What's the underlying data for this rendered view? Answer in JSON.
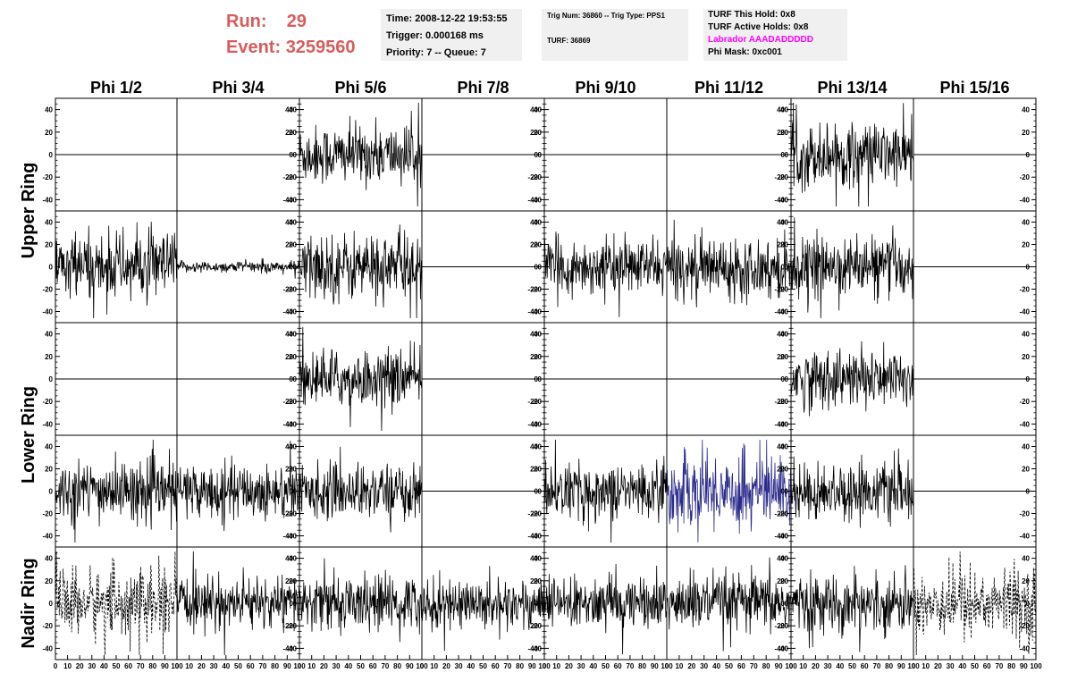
{
  "header": {
    "run_label": "Run:",
    "run_value": "29",
    "event_label": "Event:",
    "event_value": "3259560",
    "time_line": "Time: 2008-12-22 19:53:55",
    "trigger_line": "Trigger: 0.000168 ms",
    "priority_line": "Priority: 7 -- Queue: 7",
    "trig_num_line": "Trig Num: 36860 -- Trig Type: PPS1",
    "turf_line": "TURF: 36869",
    "turf_hold_line": "TURF This Hold: 0x8",
    "turf_active_line": "TURF Active Holds: 0x8",
    "labrador_line": "Labrador AAADADDDDD",
    "phi_mask_line": "Phi Mask: 0xc001",
    "labrador_color": "#ff00ff",
    "run_color": "#d95c5c"
  },
  "chart_data": {
    "type": "line",
    "columns": [
      "Phi 1/2",
      "Phi 3/4",
      "Phi 5/6",
      "Phi 7/8",
      "Phi 9/10",
      "Phi 11/12",
      "Phi 13/14",
      "Phi 15/16"
    ],
    "rows": [
      "Upper Ring",
      "Upper Ring",
      "Lower Ring",
      "Lower Ring",
      "Nadir Ring"
    ],
    "row_groups": [
      {
        "label": "Upper Ring",
        "rows": [
          0,
          1
        ]
      },
      {
        "label": "Lower Ring",
        "rows": [
          2,
          3
        ]
      },
      {
        "label": "Nadir Ring",
        "rows": [
          4
        ]
      }
    ],
    "ylim": [
      -50,
      50
    ],
    "y_ticks": [
      -40,
      -20,
      0,
      20,
      40
    ],
    "y_tick_labels": [
      "-40",
      "-20",
      "0",
      "20",
      "40"
    ],
    "xlim": [
      0,
      100
    ],
    "x_ticks": [
      0,
      10,
      20,
      30,
      40,
      50,
      60,
      70,
      80,
      90,
      100
    ],
    "x_tick_labels": [
      "0",
      "10",
      "20",
      "30",
      "40",
      "50",
      "60",
      "70",
      "80",
      "90",
      "100"
    ],
    "samples_per_trace": 256,
    "highlight_color": "#2b2b8c",
    "trace_color": "#000000",
    "cells": [
      [
        {
          "signal": false,
          "amplitude": 0,
          "style": "solid"
        },
        {
          "signal": false,
          "amplitude": 0,
          "style": "solid"
        },
        {
          "signal": true,
          "amplitude": 13,
          "style": "solid"
        },
        {
          "signal": false,
          "amplitude": 0,
          "style": "solid"
        },
        {
          "signal": false,
          "amplitude": 0,
          "style": "solid"
        },
        {
          "signal": false,
          "amplitude": 0,
          "style": "solid"
        },
        {
          "signal": true,
          "amplitude": 14,
          "style": "solid"
        },
        {
          "signal": false,
          "amplitude": 0,
          "style": "solid"
        }
      ],
      [
        {
          "signal": true,
          "amplitude": 15,
          "style": "solid"
        },
        {
          "signal": true,
          "amplitude": 2.5,
          "style": "solid"
        },
        {
          "signal": true,
          "amplitude": 15,
          "style": "solid"
        },
        {
          "signal": false,
          "amplitude": 0,
          "style": "solid"
        },
        {
          "signal": true,
          "amplitude": 12,
          "style": "solid"
        },
        {
          "signal": true,
          "amplitude": 13,
          "style": "solid"
        },
        {
          "signal": true,
          "amplitude": 13,
          "style": "solid"
        },
        {
          "signal": false,
          "amplitude": 0,
          "style": "solid"
        }
      ],
      [
        {
          "signal": false,
          "amplitude": 0,
          "style": "solid"
        },
        {
          "signal": false,
          "amplitude": 0,
          "style": "solid"
        },
        {
          "signal": true,
          "amplitude": 12,
          "style": "solid"
        },
        {
          "signal": false,
          "amplitude": 0,
          "style": "solid"
        },
        {
          "signal": false,
          "amplitude": 0,
          "style": "solid"
        },
        {
          "signal": false,
          "amplitude": 0,
          "style": "solid"
        },
        {
          "signal": true,
          "amplitude": 13,
          "style": "solid"
        },
        {
          "signal": false,
          "amplitude": 0,
          "style": "solid"
        }
      ],
      [
        {
          "signal": true,
          "amplitude": 13,
          "style": "solid"
        },
        {
          "signal": true,
          "amplitude": 12,
          "style": "solid"
        },
        {
          "signal": true,
          "amplitude": 12,
          "style": "solid"
        },
        {
          "signal": false,
          "amplitude": 0,
          "style": "solid"
        },
        {
          "signal": true,
          "amplitude": 12,
          "style": "solid"
        },
        {
          "signal": true,
          "amplitude": 17,
          "style": "solid",
          "highlight": true
        },
        {
          "signal": true,
          "amplitude": 12,
          "style": "solid"
        },
        {
          "signal": false,
          "amplitude": 0,
          "style": "solid"
        }
      ],
      [
        {
          "signal": true,
          "amplitude": 15,
          "style": "dashed"
        },
        {
          "signal": true,
          "amplitude": 11,
          "style": "solid"
        },
        {
          "signal": true,
          "amplitude": 12,
          "style": "solid"
        },
        {
          "signal": true,
          "amplitude": 11,
          "style": "solid"
        },
        {
          "signal": true,
          "amplitude": 11,
          "style": "solid"
        },
        {
          "signal": true,
          "amplitude": 13,
          "style": "solid"
        },
        {
          "signal": true,
          "amplitude": 12,
          "style": "solid"
        },
        {
          "signal": true,
          "amplitude": 15,
          "style": "dashed"
        }
      ]
    ]
  }
}
